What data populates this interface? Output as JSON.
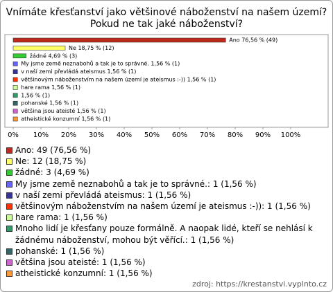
{
  "chart_data": {
    "type": "bar",
    "orientation": "horizontal",
    "title": [
      "Vnímáte křesťanství jako většinové náboženství na našem území?",
      "Pokud ne tak jaké náboženství?"
    ],
    "values": [
      76.56,
      18.75,
      4.69,
      1.56,
      1.56,
      1.56,
      1.56,
      1.56,
      1.56,
      1.56,
      1.56
    ],
    "value_labels": [
      "Ano 76,56 % (49)",
      "Ne 18,75 % (12)",
      "žádné 4,69 % (3)",
      "My jsme země neznabohů a tak je to správné. 1,56 % (1)",
      "v naší zemi převládá ateismus 1,56 % (1)",
      "většinovým náboženstvím na našem území je ateismus :-)) 1,56 % (1)",
      "hare rama 1,56 % (1)",
      "1,56 % (1)",
      "pohanské 1,56 % (1)",
      "většina jsou ateisté 1,56 % (1)",
      "atheistické konzumní 1,56 % (1)"
    ],
    "colors": [
      "#c0281c",
      "#ffff66",
      "#33cc33",
      "#6666ff",
      "#333399",
      "#ff3300",
      "#ccff99",
      "#339966",
      "#336666",
      "#cc66cc",
      "#ff9933"
    ],
    "legend": [
      "Ano: 49 (76,56 %)",
      "Ne: 12 (18,75 %)",
      "žádné: 3 (4,69 %)",
      "My jsme země neznabohů a tak je to správné.: 1 (1,56 %)",
      "v naší zemi převládá ateismus: 1 (1,56 %)",
      "většinovým náboženstvím na našem území je ateismus :-)): 1 (1,56 %)",
      "hare rama: 1 (1,56 %)",
      "Mnoho lidí je křesťany pouze formálně. A naopak lidé, kteří se nehlásí k žádnému náboženství, mohou být věřící.: 1 (1,56 %)",
      "pohanské: 1 (1,56 %)",
      "většina jsou ateisté: 1 (1,56 %)",
      "atheistické konzumní: 1 (1,56 %)"
    ],
    "xlim": [
      0,
      100
    ],
    "xticks": [
      {
        "value": 0,
        "label": "0%"
      },
      {
        "value": 10,
        "label": "10%"
      },
      {
        "value": 20,
        "label": "20%"
      },
      {
        "value": 30,
        "label": "30%"
      },
      {
        "value": 40,
        "label": "40%"
      },
      {
        "value": 50,
        "label": "50%"
      },
      {
        "value": 60,
        "label": "60%"
      },
      {
        "value": 70,
        "label": "70%"
      },
      {
        "value": 80,
        "label": "80%"
      },
      {
        "value": 90,
        "label": "90%"
      },
      {
        "value": 100,
        "label": "100%"
      }
    ],
    "source": "zdroj: https://krestanstvi.vyplnto.cz"
  }
}
